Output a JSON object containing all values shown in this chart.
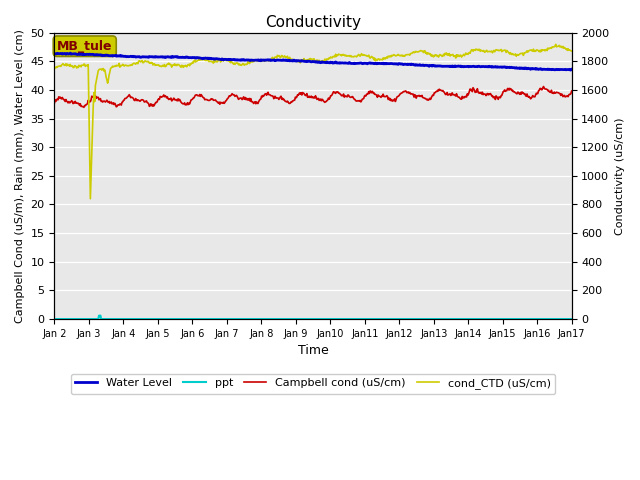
{
  "title": "Conductivity",
  "xlabel": "Time",
  "ylabel_left": "Campbell Cond (uS/m), Rain (mm), Water Level (cm)",
  "ylabel_right": "Conductivity (uS/cm)",
  "ylim_left": [
    0,
    50
  ],
  "ylim_right": [
    0,
    2000
  ],
  "yticks_left": [
    0,
    5,
    10,
    15,
    20,
    25,
    30,
    35,
    40,
    45,
    50
  ],
  "yticks_right": [
    0,
    200,
    400,
    600,
    800,
    1000,
    1200,
    1400,
    1600,
    1800,
    2000
  ],
  "site_label": "MB_tule",
  "bg_color": "#e8e8e8",
  "water_level_color": "#0000cc",
  "ppt_color": "#00cccc",
  "campbell_color": "#cc0000",
  "ctd_color": "#cccc00",
  "legend_items": [
    "Water Level",
    "ppt",
    "Campbell cond (uS/cm)",
    "cond_CTD (uS/cm)"
  ],
  "n_days": 15,
  "pts_per_day": 48
}
